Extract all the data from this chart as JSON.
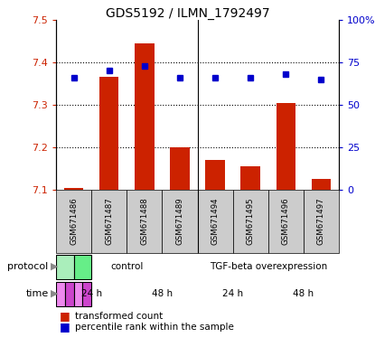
{
  "title": "GDS5192 / ILMN_1792497",
  "samples": [
    "GSM671486",
    "GSM671487",
    "GSM671488",
    "GSM671489",
    "GSM671494",
    "GSM671495",
    "GSM671496",
    "GSM671497"
  ],
  "red_values": [
    7.105,
    7.365,
    7.445,
    7.2,
    7.17,
    7.155,
    7.305,
    7.125
  ],
  "blue_values": [
    66,
    70,
    73,
    66,
    66,
    66,
    68,
    65
  ],
  "ymin": 7.1,
  "ymax": 7.5,
  "y2min": 0,
  "y2max": 100,
  "y_ticks": [
    7.1,
    7.2,
    7.3,
    7.4,
    7.5
  ],
  "y2_ticks": [
    0,
    25,
    50,
    75,
    100
  ],
  "y2_tick_labels": [
    "0",
    "25",
    "50",
    "75",
    "100%"
  ],
  "bar_color": "#cc2200",
  "dot_color": "#0000cc",
  "bar_bottom": 7.1,
  "protocol_groups": [
    {
      "label": "control",
      "start": 0,
      "end": 4,
      "color": "#aaeebb"
    },
    {
      "label": "TGF-beta overexpression",
      "start": 4,
      "end": 8,
      "color": "#66ee88"
    }
  ],
  "time_groups": [
    {
      "label": "24 h",
      "start": 0,
      "end": 2,
      "color": "#ee88ee"
    },
    {
      "label": "48 h",
      "start": 2,
      "end": 4,
      "color": "#cc44cc"
    },
    {
      "label": "24 h",
      "start": 4,
      "end": 6,
      "color": "#ee88ee"
    },
    {
      "label": "48 h",
      "start": 6,
      "end": 8,
      "color": "#cc44cc"
    }
  ],
  "axis_label_color_left": "#cc2200",
  "axis_label_color_right": "#0000cc",
  "sample_box_color": "#cccccc",
  "grid_color": "#000000"
}
